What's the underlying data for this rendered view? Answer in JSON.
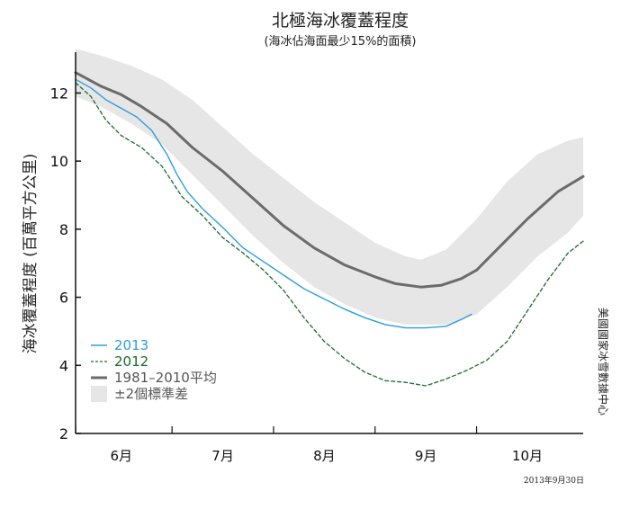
{
  "chart_data": {
    "type": "line",
    "title": "北極海冰覆蓋程度",
    "subtitle": "(海冰佔海面最少15%的面積)",
    "ylabel": "海冰覆蓋程度 (百萬平方公里)",
    "xlabel": "",
    "ylim": [
      2,
      13.2
    ],
    "xlim": [
      5.55,
      10.55
    ],
    "yticks": [
      2,
      4,
      6,
      8,
      10,
      12
    ],
    "xticks": [
      {
        "label": "6月",
        "pos": 6
      },
      {
        "label": "7月",
        "pos": 7
      },
      {
        "label": "8月",
        "pos": 8
      },
      {
        "label": "9月",
        "pos": 9
      },
      {
        "label": "10月",
        "pos": 10
      }
    ],
    "month_dividers": [
      5.55,
      6.5,
      7.5,
      8.5,
      9.5
    ],
    "source": "美國國家冰雪數據中心",
    "date_note": "2013年9月30日",
    "legend_position": "bottom-left",
    "band": {
      "name": "±2個標準差",
      "color": "#e6e6e6",
      "x": [
        5.55,
        5.8,
        6.1,
        6.4,
        6.7,
        7.0,
        7.3,
        7.6,
        7.9,
        8.2,
        8.5,
        8.8,
        8.95,
        9.2,
        9.5,
        9.8,
        10.1,
        10.4,
        10.55
      ],
      "upper": [
        13.3,
        13.1,
        12.8,
        12.4,
        11.8,
        11.0,
        10.2,
        9.5,
        8.8,
        8.2,
        7.6,
        7.2,
        7.1,
        7.4,
        8.3,
        9.4,
        10.2,
        10.6,
        10.7
      ],
      "lower": [
        11.9,
        11.6,
        11.1,
        10.5,
        9.6,
        8.7,
        7.8,
        7.0,
        6.3,
        5.8,
        5.4,
        5.2,
        5.2,
        5.2,
        5.5,
        6.3,
        7.2,
        7.9,
        8.4
      ]
    },
    "series": [
      {
        "name": "2013",
        "color": "#2b9fdc",
        "style": "solid",
        "x": [
          5.55,
          5.7,
          5.85,
          6.0,
          6.15,
          6.3,
          6.45,
          6.55,
          6.65,
          6.8,
          7.0,
          7.2,
          7.4,
          7.6,
          7.8,
          8.0,
          8.2,
          8.4,
          8.6,
          8.8,
          9.0,
          9.2,
          9.35,
          9.45
        ],
        "values": [
          12.4,
          12.15,
          11.8,
          11.55,
          11.3,
          10.9,
          10.2,
          9.6,
          9.1,
          8.6,
          8.05,
          7.45,
          7.05,
          6.65,
          6.25,
          5.95,
          5.65,
          5.4,
          5.2,
          5.1,
          5.1,
          5.15,
          5.35,
          5.5
        ]
      },
      {
        "name": "2012",
        "color": "#1a6b2c",
        "style": "dashed",
        "x": [
          5.55,
          5.7,
          5.85,
          6.0,
          6.2,
          6.4,
          6.6,
          6.8,
          7.0,
          7.2,
          7.4,
          7.6,
          7.8,
          8.0,
          8.2,
          8.4,
          8.6,
          8.8,
          9.0,
          9.2,
          9.4,
          9.6,
          9.8,
          10.0,
          10.2,
          10.4,
          10.55
        ],
        "values": [
          12.3,
          11.9,
          11.2,
          10.75,
          10.4,
          9.85,
          8.95,
          8.4,
          7.75,
          7.3,
          6.8,
          6.2,
          5.4,
          4.7,
          4.2,
          3.8,
          3.55,
          3.5,
          3.4,
          3.6,
          3.85,
          4.15,
          4.7,
          5.6,
          6.5,
          7.3,
          7.65
        ]
      },
      {
        "name": "1981–2010平均",
        "color": "#6b6b6b",
        "style": "thick",
        "x": [
          5.55,
          5.8,
          6.0,
          6.2,
          6.45,
          6.7,
          7.0,
          7.3,
          7.6,
          7.9,
          8.2,
          8.5,
          8.7,
          8.95,
          9.15,
          9.35,
          9.5,
          9.7,
          10.0,
          10.3,
          10.55
        ],
        "values": [
          12.6,
          12.2,
          11.95,
          11.6,
          11.1,
          10.4,
          9.7,
          8.9,
          8.1,
          7.45,
          6.95,
          6.6,
          6.4,
          6.3,
          6.35,
          6.55,
          6.8,
          7.4,
          8.3,
          9.1,
          9.55
        ]
      }
    ]
  }
}
